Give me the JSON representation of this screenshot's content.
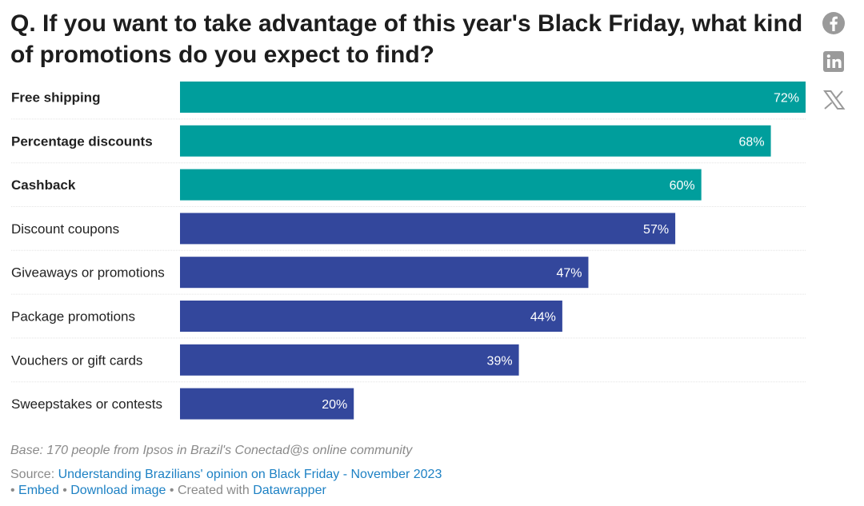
{
  "title": "Q. If you want to take advantage of this year's Black Friday, what kind of promotions do you expect to find?",
  "social": {
    "icons": [
      "facebook-icon",
      "linkedin-icon",
      "x-icon"
    ]
  },
  "chart_data": {
    "type": "bar",
    "orientation": "horizontal",
    "title": "Q. If you want to take advantage of this year's Black Friday, what kind of promotions do you expect to find?",
    "categories": [
      "Free shipping",
      "Percentage discounts",
      "Cashback",
      "Discount coupons",
      "Giveaways or promotions",
      "Package promotions",
      "Vouchers or gift cards",
      "Sweepstakes or contests"
    ],
    "values": [
      72,
      68,
      60,
      57,
      47,
      44,
      39,
      20
    ],
    "value_labels": [
      "72%",
      "68%",
      "60%",
      "57%",
      "47%",
      "44%",
      "39%",
      "20%"
    ],
    "highlighted": [
      true,
      true,
      true,
      false,
      false,
      false,
      false,
      false
    ],
    "xlim": [
      0,
      72
    ],
    "unit": "%",
    "colors": {
      "highlight": "#009e9c",
      "default": "#33479c"
    }
  },
  "notes": "Base: 170 people from Ipsos in Brazil's Conectad@s online community",
  "footer": {
    "source_prefix": "Source: ",
    "source_link": "Understanding Brazilians' opinion on Black Friday - November 2023",
    "sep1": " • ",
    "embed": "Embed",
    "sep2": " • ",
    "download": "Download image",
    "sep3": " • ",
    "created": "Created with ",
    "datawrapper": "Datawrapper"
  }
}
